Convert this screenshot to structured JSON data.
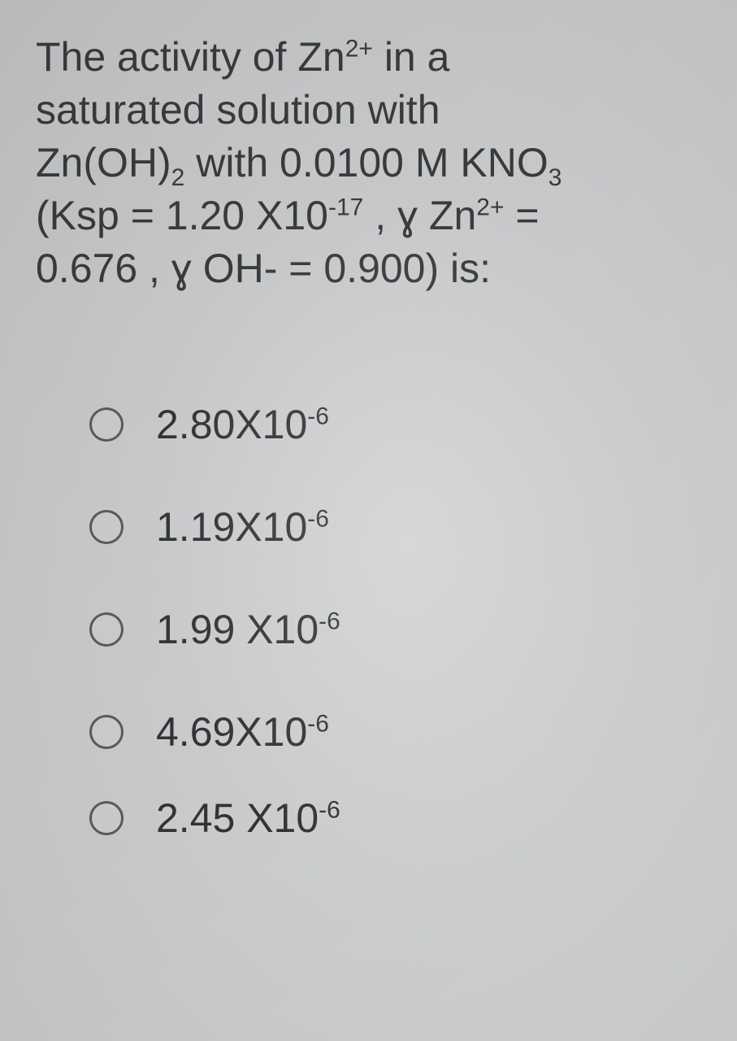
{
  "question": {
    "line1_pre": "The activity of Zn",
    "line1_sup": "2+",
    "line1_post": "  in a",
    "line2": "saturated solution with",
    "line3_pre": "Zn(OH)",
    "line3_sub": "2",
    "line3_mid": " with 0.0100 M KNO",
    "line3_sub2": "3",
    "line4_pre": "(Ksp = 1.20 X10",
    "line4_sup1": "-17",
    "line4_mid": " , ɣ Zn",
    "line4_sup2": "2+",
    "line4_post": " =",
    "line5": "0.676 , ɣ OH- =  0.900) is:"
  },
  "options": [
    {
      "base": "2.80X10",
      "exp": "-6"
    },
    {
      "base": "1.19X10",
      "exp": "-6"
    },
    {
      "base": "1.99 X10",
      "exp": "-6"
    },
    {
      "base": "4.69X10",
      "exp": "-6"
    },
    {
      "base": "2.45 X10",
      "exp": "-6"
    }
  ],
  "style": {
    "text_color": "#3a3c3e",
    "radio_border": "#5b5d5f",
    "font_size_question": 50,
    "font_size_option": 50
  }
}
